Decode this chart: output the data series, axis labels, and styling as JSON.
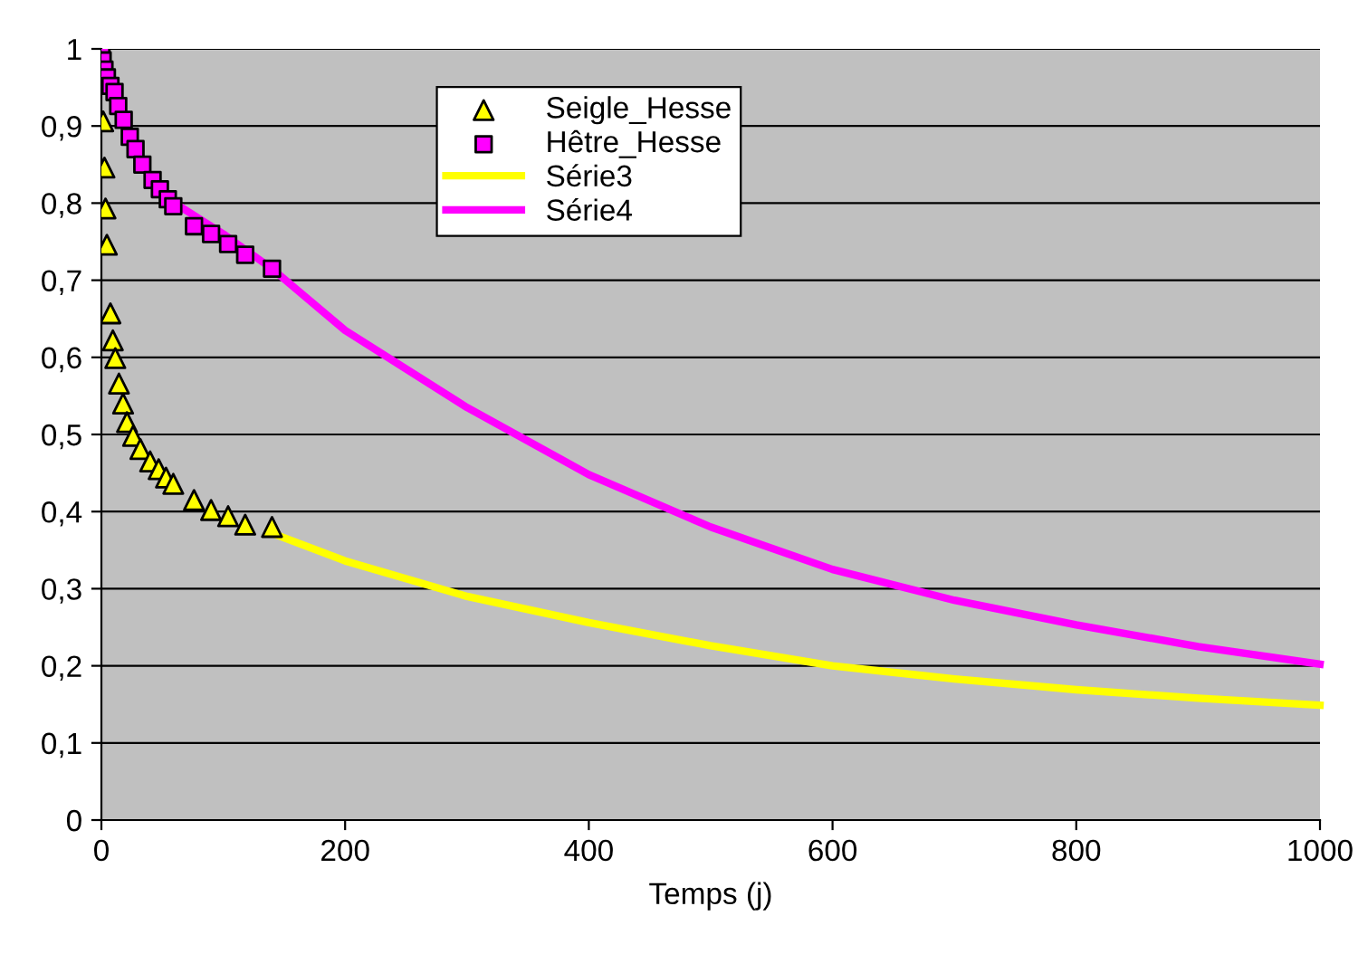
{
  "chart_data": {
    "type": "scatter",
    "xlabel": "Temps (j)",
    "series": [
      {
        "name": "Seigle_Hesse",
        "marker": "triangle",
        "color": "#ffff00",
        "x": [
          1.5,
          2.5,
          3.4,
          4.5,
          7.4,
          9.4,
          11.4,
          14.4,
          17.8,
          21,
          26,
          32,
          40,
          47,
          53,
          59,
          76,
          90,
          104,
          118,
          140
        ],
        "values": [
          0.906,
          0.846,
          0.793,
          0.746,
          0.657,
          0.622,
          0.599,
          0.566,
          0.54,
          0.516,
          0.498,
          0.481,
          0.465,
          0.455,
          0.444,
          0.436,
          0.415,
          0.402,
          0.394,
          0.383,
          0.38
        ]
      },
      {
        "name": "Hêtre_Hesse",
        "marker": "square",
        "color": "#ff00ff",
        "x": [
          0,
          1,
          2.5,
          4.5,
          7.4,
          10.8,
          13.8,
          18.3,
          23.3,
          28,
          33.6,
          42,
          48,
          54.5,
          59,
          76,
          90,
          104,
          118,
          140
        ],
        "values": [
          1.0,
          0.985,
          0.973,
          0.963,
          0.952,
          0.944,
          0.926,
          0.908,
          0.886,
          0.87,
          0.85,
          0.83,
          0.818,
          0.805,
          0.796,
          0.77,
          0.76,
          0.747,
          0.733,
          0.715
        ]
      },
      {
        "name": "Série3",
        "type": "line",
        "color": "#ffff00",
        "x": [
          140,
          200,
          300,
          400,
          500,
          600,
          700,
          800,
          900,
          1000
        ],
        "values": [
          0.372,
          0.336,
          0.29,
          0.256,
          0.226,
          0.2,
          0.183,
          0.169,
          0.158,
          0.149
        ]
      },
      {
        "name": "Série4",
        "type": "line",
        "color": "#ff00ff",
        "x": [
          50,
          100,
          140,
          200,
          300,
          400,
          500,
          600,
          700,
          800,
          900,
          1000
        ],
        "values": [
          0.81,
          0.76,
          0.715,
          0.635,
          0.535,
          0.448,
          0.38,
          0.325,
          0.285,
          0.253,
          0.225,
          0.202
        ]
      }
    ],
    "xlim": [
      0,
      1000
    ],
    "xticks": [
      0,
      200,
      400,
      600,
      800,
      1000
    ],
    "ylim": [
      0,
      1
    ],
    "yticks": [
      0,
      {
        "value": 0.1,
        "label": "0,1"
      },
      {
        "value": 0.2,
        "label": "0,2"
      },
      {
        "value": 0.3,
        "label": "0,3"
      },
      {
        "value": 0.4,
        "label": "0,4"
      },
      {
        "value": 0.5,
        "label": "0,5"
      },
      {
        "value": 0.6,
        "label": "0,6"
      },
      {
        "value": 0.7,
        "label": "0,7"
      },
      {
        "value": 0.8,
        "label": "0,8"
      },
      {
        "value": 0.9,
        "label": "0,9"
      },
      1
    ],
    "grid": "y",
    "legend": "top"
  }
}
